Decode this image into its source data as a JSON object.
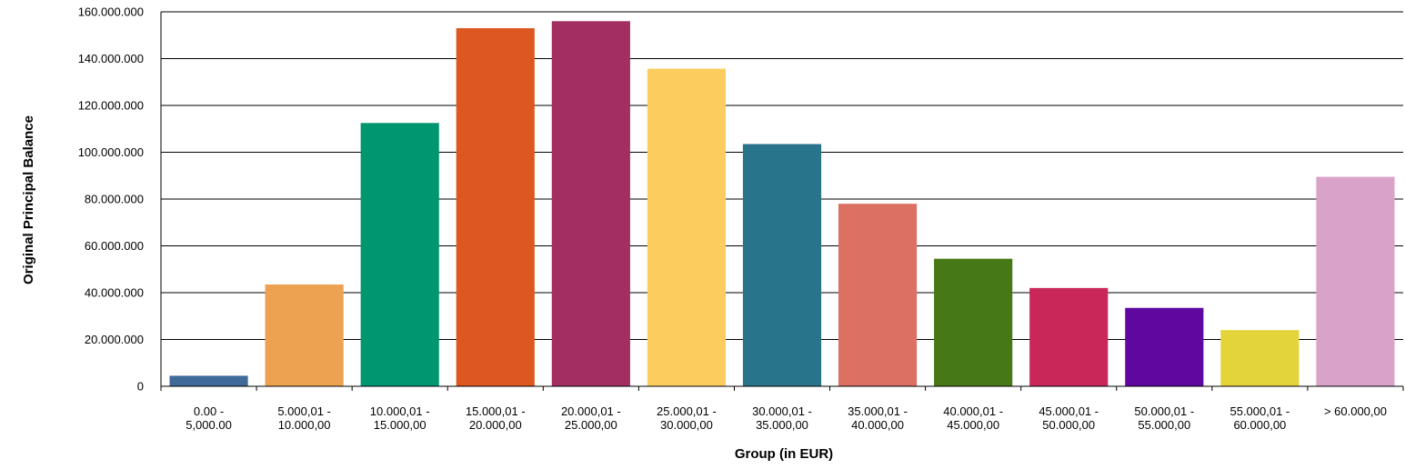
{
  "chart_data": {
    "type": "bar",
    "xlabel": "Group (in EUR)",
    "ylabel": "Original Principal Balance",
    "ylim": [
      0,
      160000000
    ],
    "grid": true,
    "y_ticks": [
      "0",
      "20.000.000",
      "40.000.000",
      "60.000.000",
      "80.000.000",
      "100.000.000",
      "120.000.000",
      "140.000.000",
      "160.000.000"
    ],
    "categories": [
      [
        "0.00 -",
        "5,000.00"
      ],
      [
        "5.000,01 -",
        "10.000,00"
      ],
      [
        "10.000,01 -",
        "15.000,00"
      ],
      [
        "15.000,01 -",
        "20.000,00"
      ],
      [
        "20.000,01 -",
        "25.000,00"
      ],
      [
        "25.000,01 -",
        "30.000,00"
      ],
      [
        "30.000,01 -",
        "35.000,00"
      ],
      [
        "35.000,01 -",
        "40.000,00"
      ],
      [
        "40.000,01 -",
        "45.000,00"
      ],
      [
        "45.000,01 -",
        "50.000,00"
      ],
      [
        "50.000,01 -",
        "55.000,00"
      ],
      [
        "55.000,01 -",
        "60.000,00"
      ],
      [
        "> 60.000,00"
      ]
    ],
    "values": [
      4500000,
      43500000,
      112500000,
      153000000,
      156000000,
      135700000,
      103500000,
      78000000,
      54500000,
      42000000,
      33500000,
      24000000,
      89500000
    ],
    "colors": [
      "#3F6A9A",
      "#EDA251",
      "#009670",
      "#DD5820",
      "#A22E62",
      "#FDCC5F",
      "#28748A",
      "#DC7063",
      "#477816",
      "#C9265A",
      "#5E08A0",
      "#E3D43B",
      "#D9A2C8"
    ]
  }
}
